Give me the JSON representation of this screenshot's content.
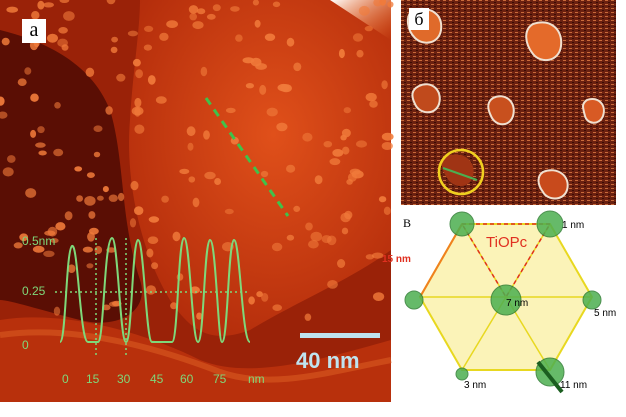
{
  "panel_a": {
    "letter": "а",
    "y_labels": [
      "0.5nm",
      "0.25",
      "0"
    ],
    "x_labels": [
      "0",
      "15",
      "30",
      "45",
      "60",
      "75",
      "nm"
    ],
    "scale_bar": "40 nm",
    "colors": {
      "profile": "#7fd87a",
      "dash": "#3fc24a",
      "scale_bar": "#bfe3ef"
    }
  },
  "panel_b": {
    "letter": "б",
    "colors": {
      "circle": "#f0d020"
    }
  },
  "panel_c": {
    "letter": "В",
    "labels": {
      "molecule": "TiOPc",
      "top_left": "15 nm",
      "top_right": "1 nm",
      "center": "7 nm",
      "right": "5 nm",
      "bottom_left": "3 nm",
      "bottom_right": "11 nm"
    },
    "colors": {
      "hex_fill": "#fbf3b8",
      "hex_edge": "#e8d820",
      "cluster": "#4caf50",
      "molecule_label": "#e03020"
    }
  }
}
